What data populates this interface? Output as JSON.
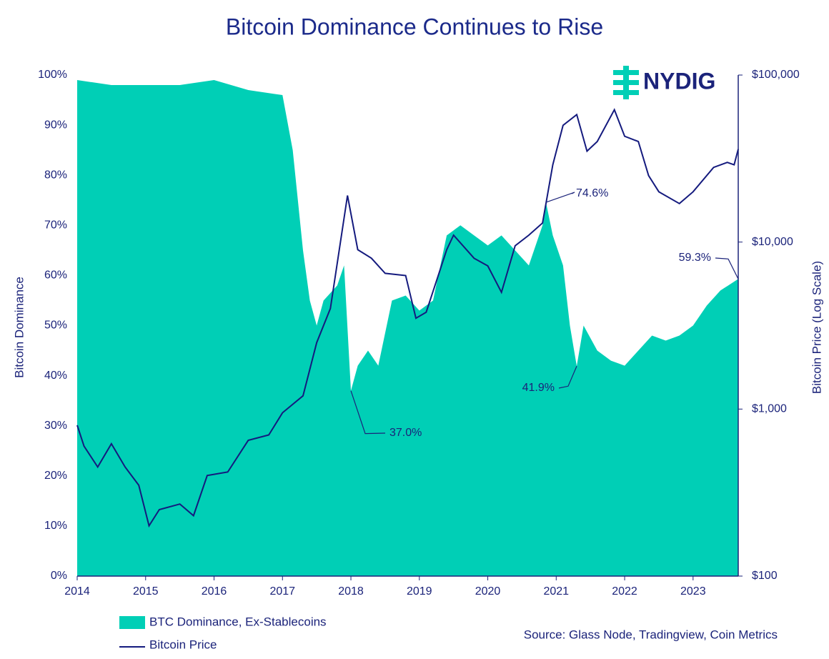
{
  "chart_data": {
    "type": "area-line",
    "title": "Bitcoin Dominance Continues to Rise",
    "logo": "NYDIG",
    "y_label": "Bitcoin Dominance",
    "y2_label": "Bitcoin Price (Log Scale)",
    "source": "Source: Glass Node, Tradingview, Coin Metrics",
    "xlim": [
      2014,
      2023.66
    ],
    "xticks": [
      2014,
      2015,
      2016,
      2017,
      2018,
      2019,
      2020,
      2021,
      2022,
      2023
    ],
    "ylim": [
      0,
      100
    ],
    "yticks": [
      {
        "value": 0,
        "label": "0%"
      },
      {
        "value": 10,
        "label": "10%"
      },
      {
        "value": 20,
        "label": "20%"
      },
      {
        "value": 30,
        "label": "30%"
      },
      {
        "value": 40,
        "label": "40%"
      },
      {
        "value": 50,
        "label": "50%"
      },
      {
        "value": 60,
        "label": "60%"
      },
      {
        "value": 70,
        "label": "70%"
      },
      {
        "value": 80,
        "label": "80%"
      },
      {
        "value": 90,
        "label": "90%"
      },
      {
        "value": 100,
        "label": "100%"
      }
    ],
    "y2lim": [
      100,
      100000
    ],
    "y2scale": "log",
    "y2ticks": [
      {
        "value": 100,
        "label": "$100"
      },
      {
        "value": 1000,
        "label": "$1,000"
      },
      {
        "value": 10000,
        "label": "$10,000"
      },
      {
        "value": 100000,
        "label": "$100,000"
      }
    ],
    "series": [
      {
        "name": "BTC Dominance, Ex-Stablecoins",
        "type": "area",
        "color": "#00cfb6",
        "x": [
          2014.0,
          2014.5,
          2015.0,
          2015.5,
          2016.0,
          2016.5,
          2017.0,
          2017.15,
          2017.3,
          2017.4,
          2017.5,
          2017.6,
          2017.8,
          2017.9,
          2018.0,
          2018.1,
          2018.25,
          2018.4,
          2018.6,
          2018.8,
          2019.0,
          2019.2,
          2019.4,
          2019.6,
          2019.8,
          2020.0,
          2020.2,
          2020.4,
          2020.6,
          2020.8,
          2020.85,
          2020.95,
          2021.1,
          2021.2,
          2021.3,
          2021.4,
          2021.6,
          2021.8,
          2022.0,
          2022.2,
          2022.4,
          2022.6,
          2022.8,
          2023.0,
          2023.2,
          2023.4,
          2023.66
        ],
        "values": [
          99,
          98,
          98,
          98,
          99,
          97,
          96,
          85,
          65,
          55,
          50,
          55,
          58,
          62,
          37,
          42,
          45,
          42,
          55,
          56,
          53,
          55,
          68,
          70,
          68,
          66,
          68,
          65,
          62,
          70,
          74.6,
          68,
          62,
          50,
          41.9,
          50,
          45,
          43,
          42,
          45,
          48,
          47,
          48,
          50,
          54,
          57,
          59.3
        ]
      },
      {
        "name": "Bitcoin Price",
        "type": "line",
        "axis": "y2",
        "color": "#141a7e",
        "x": [
          2014.0,
          2014.1,
          2014.3,
          2014.5,
          2014.7,
          2014.9,
          2015.05,
          2015.2,
          2015.5,
          2015.7,
          2015.9,
          2016.2,
          2016.5,
          2016.8,
          2017.0,
          2017.3,
          2017.5,
          2017.7,
          2017.95,
          2018.1,
          2018.3,
          2018.5,
          2018.8,
          2018.95,
          2019.1,
          2019.4,
          2019.5,
          2019.8,
          2020.0,
          2020.2,
          2020.4,
          2020.6,
          2020.8,
          2020.95,
          2021.1,
          2021.3,
          2021.45,
          2021.6,
          2021.85,
          2022.0,
          2022.2,
          2022.35,
          2022.5,
          2022.8,
          2023.0,
          2023.3,
          2023.5,
          2023.6,
          2023.66
        ],
        "values": [
          800,
          600,
          450,
          620,
          450,
          350,
          200,
          250,
          270,
          230,
          400,
          420,
          650,
          700,
          950,
          1200,
          2500,
          4000,
          19000,
          9000,
          8000,
          6500,
          6300,
          3500,
          3800,
          9000,
          11000,
          8000,
          7200,
          5000,
          9500,
          11000,
          13000,
          29000,
          50000,
          58000,
          35000,
          40000,
          62000,
          43000,
          40000,
          25000,
          20000,
          17000,
          20000,
          28000,
          30000,
          29000,
          36000
        ]
      }
    ],
    "annotations": [
      {
        "label": "37.0%",
        "x": 2018.0,
        "value": 37.0
      },
      {
        "label": "74.6%",
        "x": 2020.85,
        "value": 74.6
      },
      {
        "label": "41.9%",
        "x": 2021.3,
        "value": 41.9
      },
      {
        "label": "59.3%",
        "x": 2023.66,
        "value": 59.3
      }
    ]
  }
}
